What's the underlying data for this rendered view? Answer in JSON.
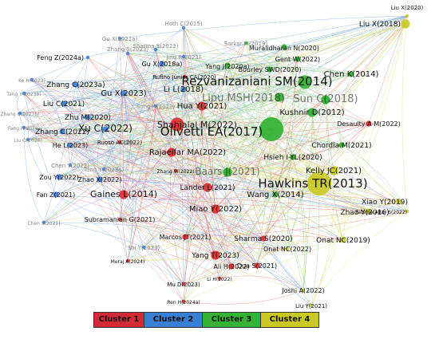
{
  "colors": {
    "cluster1": "#e02a2e",
    "cluster2": "#3b7fd8",
    "cluster3": "#2fae2f",
    "cluster4": "#c7c920",
    "edge_red": "#e8787a",
    "edge_blue": "#79a8e8",
    "edge_green": "#8fd08f",
    "edge_yellow": "#dede7a"
  },
  "legend": [
    {
      "label": "Cluster 1",
      "color": "#d42a35"
    },
    {
      "label": "Cluster 2",
      "color": "#3a7fd6"
    },
    {
      "label": "Cluster 3",
      "color": "#35b335"
    },
    {
      "label": "Cluster 4",
      "color": "#c9c922"
    }
  ],
  "nodes": [
    {
      "label": "Liu X(2020)",
      "cluster": 4,
      "size": 1
    },
    {
      "label": "Liu X(2018)",
      "cluster": 4,
      "size": 3
    },
    {
      "label": "Hoth C(2015)",
      "cluster": 2,
      "size": 1
    },
    {
      "label": "Gu X(2021a)",
      "cluster": 2,
      "size": 1
    },
    {
      "label": "Sharma S(2023)",
      "cluster": 2,
      "size": 1
    },
    {
      "label": "Sarkar M(2019)",
      "cluster": 3,
      "size": 1
    },
    {
      "label": "Muralidharan N(2020)",
      "cluster": 3,
      "size": 2
    },
    {
      "label": "Feng Z(2024a)",
      "cluster": 2,
      "size": 1
    },
    {
      "label": "Zhang S(2023)",
      "cluster": 2,
      "size": 1
    },
    {
      "label": "Jing R(2023)",
      "cluster": 2,
      "size": 1
    },
    {
      "label": "Gent W(2022)",
      "cluster": 3,
      "size": 2
    },
    {
      "label": "Gu X(2018a)",
      "cluster": 2,
      "size": 2
    },
    {
      "label": "Yang J(2020a)",
      "cluster": 3,
      "size": 2
    },
    {
      "label": "Bourley SWD(2020)",
      "cluster": 3,
      "size": 2
    },
    {
      "label": "Chen K(2014)",
      "cluster": 3,
      "size": 2
    },
    {
      "label": "Ke H(2023)",
      "cluster": 2,
      "size": 1
    },
    {
      "label": "Zhang C(2023a)",
      "cluster": 2,
      "size": 2
    },
    {
      "label": "Rufino Júnior CA(2020)",
      "cluster": 1,
      "size": 1
    },
    {
      "label": "Rezvanizaniani SM(2014)",
      "cluster": 3,
      "size": 4
    },
    {
      "label": "Tang Y(2023b)",
      "cluster": 2,
      "size": 1
    },
    {
      "label": "Li L(2018)",
      "cluster": 2,
      "size": 2
    },
    {
      "label": "Gu X(2023)",
      "cluster": 2,
      "size": 2
    },
    {
      "label": "Liu C(2021)",
      "cluster": 2,
      "size": 2
    },
    {
      "label": "Song H(2022)",
      "cluster": 2,
      "size": 1
    },
    {
      "label": "Lipu MSH(2018)",
      "cluster": 3,
      "size": 3
    },
    {
      "label": "Hua Y(2021)",
      "cluster": 1,
      "size": 3
    },
    {
      "label": "Sun C(2018)",
      "cluster": 3,
      "size": 3
    },
    {
      "label": "Zhang C(2023b)",
      "cluster": 2,
      "size": 1
    },
    {
      "label": "Kushnir D(2012)",
      "cluster": 3,
      "size": 3
    },
    {
      "label": "Zhu M(2020)",
      "cluster": 2,
      "size": 2
    },
    {
      "label": "Shahjalal M(2022)",
      "cluster": 1,
      "size": 4
    },
    {
      "label": "Fang R(2020)",
      "cluster": 2,
      "size": 1
    },
    {
      "label": "Desaulty A-M(2022)",
      "cluster": 1,
      "size": 2
    },
    {
      "label": "Olivetti EA(2017)",
      "cluster": 3,
      "size": 5
    },
    {
      "label": "Zhang C(2022)",
      "cluster": 2,
      "size": 2
    },
    {
      "label": "Xu C(2022)",
      "cluster": 2,
      "size": 2
    },
    {
      "label": "Liu O(2024)",
      "cluster": 2,
      "size": 1
    },
    {
      "label": "Ruoso AC(2022)",
      "cluster": 1,
      "size": 1
    },
    {
      "label": "Chordia M(2021)",
      "cluster": 3,
      "size": 2
    },
    {
      "label": "He L(2023)",
      "cluster": 2,
      "size": 2
    },
    {
      "label": "Rajaeifar MA(2022)",
      "cluster": 1,
      "size": 3
    },
    {
      "label": "Hsieh I-YL(2020)",
      "cluster": 3,
      "size": 2
    },
    {
      "label": "Chen Y(2022)",
      "cluster": 2,
      "size": 1
    },
    {
      "label": "Baars J(2021)",
      "cluster": 3,
      "size": 3
    },
    {
      "label": "Kelly JC(2021)",
      "cluster": 4,
      "size": 3
    },
    {
      "label": "Zhang W(2022)",
      "cluster": 1,
      "size": 1
    },
    {
      "label": "Zou Y(2022)",
      "cluster": 2,
      "size": 2
    },
    {
      "label": "Tang Y(2023a)",
      "cluster": 2,
      "size": 1
    },
    {
      "label": "Zhao X(2022)",
      "cluster": 2,
      "size": 2
    },
    {
      "label": "Hawkins TR(2013)",
      "cluster": 4,
      "size": 5
    },
    {
      "label": "Lander L(2021)",
      "cluster": 1,
      "size": 3
    },
    {
      "label": "Gaines L(2014)",
      "cluster": 1,
      "size": 3
    },
    {
      "label": "Fan Z(2021)",
      "cluster": 2,
      "size": 2
    },
    {
      "label": "Wang X(2014)",
      "cluster": 3,
      "size": 2
    },
    {
      "label": "Xiao Y(2019)",
      "cluster": 4,
      "size": 2
    },
    {
      "label": "Miao Y(2022)",
      "cluster": 1,
      "size": 3
    },
    {
      "label": "Subramanian G(2021)",
      "cluster": 1,
      "size": 1
    },
    {
      "label": "Zhao Y(2016)",
      "cluster": 4,
      "size": 2
    },
    {
      "label": "Fateme Attar S(2022)",
      "cluster": 4,
      "size": 1
    },
    {
      "label": "Chen S(2021)",
      "cluster": 2,
      "size": 1
    },
    {
      "label": "Shi Y(2023)",
      "cluster": 2,
      "size": 1
    },
    {
      "label": "Marcos JT(2021)",
      "cluster": 1,
      "size": 2
    },
    {
      "label": "Sharma S(2020)",
      "cluster": 1,
      "size": 2
    },
    {
      "label": "Onat NC(2019)",
      "cluster": 4,
      "size": 2
    },
    {
      "label": "Yang T(2023)",
      "cluster": 1,
      "size": 3
    },
    {
      "label": "Onat NC(2022)",
      "cluster": 4,
      "size": 1
    },
    {
      "label": "Ali H(2022)",
      "cluster": 1,
      "size": 2
    },
    {
      "label": "Meraj A(2024)",
      "cluster": 1,
      "size": 1
    },
    {
      "label": "Dua S(2021)",
      "cluster": 1,
      "size": 2
    },
    {
      "label": "Mu D(2023)",
      "cluster": 1,
      "size": 1
    },
    {
      "label": "Li H(2022)",
      "cluster": 1,
      "size": 1
    },
    {
      "label": "Joshi A(2022)",
      "cluster": 4,
      "size": 1
    },
    {
      "label": "Ren H(2024a)",
      "cluster": 1,
      "size": 1
    },
    {
      "label": "Liu Y(2021)",
      "cluster": 4,
      "size": 1
    }
  ]
}
